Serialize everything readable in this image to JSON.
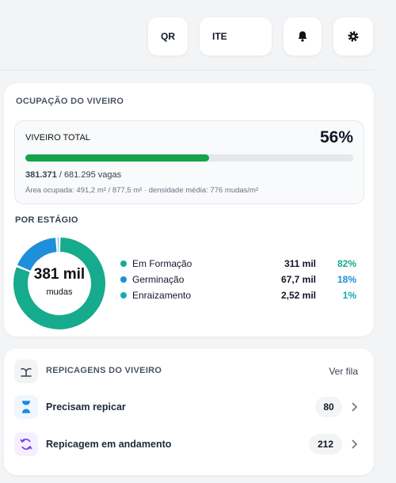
{
  "toolbar": {
    "qr": "QR",
    "ite": "ITE"
  },
  "occupancy": {
    "title": "OCUPAÇÃO DO VIVEIRO",
    "total_label": "VIVEIRO TOTAL",
    "percent": 56,
    "percent_label": "56%",
    "bar_color": "#16a34a",
    "used": "381.371",
    "capacity": "/ 681.295 vagas",
    "area": "Área ocupada: 491,2 m² / 877,5 m² · densidade média: 776 mudas/m²",
    "stages_title": "POR ESTÁGIO",
    "center_value": "381 mil",
    "center_unit": "mudas",
    "stages": [
      {
        "name": "Em Formação",
        "amount": "311 mil",
        "share": 82,
        "share_label": "82%",
        "color": "#16ab8c"
      },
      {
        "name": "Germinação",
        "amount": "67,7 mil",
        "share": 18,
        "share_label": "18%",
        "color": "#1e8fdb"
      },
      {
        "name": "Enraizamento",
        "amount": "2,52 mil",
        "share": 1,
        "share_label": "1%",
        "color": "#17a8b5"
      }
    ]
  },
  "transplants": {
    "title": "REPICAGENS DO VIVEIRO",
    "link": "Ver fila",
    "rows": [
      {
        "label": "Precisam repicar",
        "count": "80"
      },
      {
        "label": "Repicagem em andamento",
        "count": "212"
      }
    ]
  }
}
